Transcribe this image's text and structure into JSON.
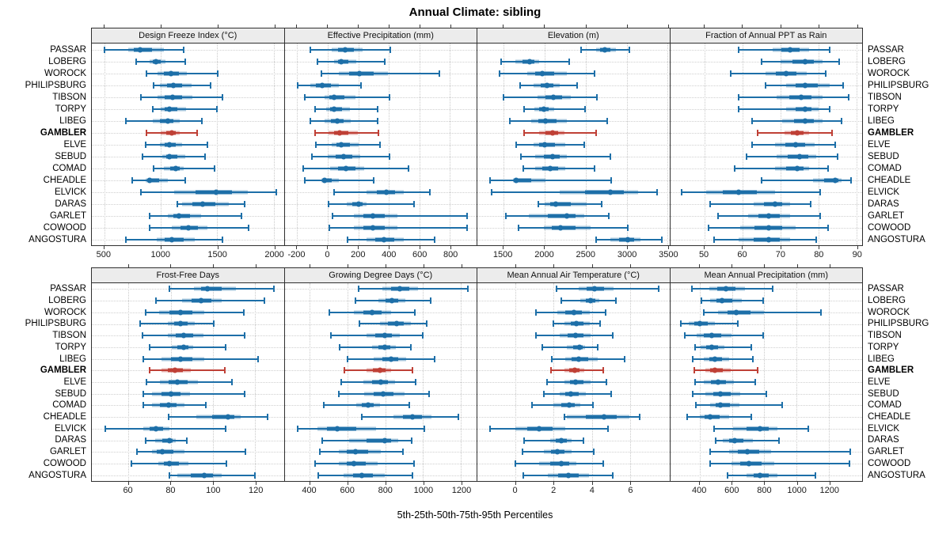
{
  "title": "Annual Climate: sibling",
  "caption": "5th-25th-50th-75th-95th Percentiles",
  "sites": [
    "PASSAR",
    "LOBERG",
    "WOROCK",
    "PHILIPSBURG",
    "TIBSON",
    "TORPY",
    "LIBEG",
    "GAMBLER",
    "ELVE",
    "SEBUD",
    "COMAD",
    "CHEADLE",
    "ELVICK",
    "DARAS",
    "GARLET",
    "COWOOD",
    "ANGOSTURA"
  ],
  "highlight_site": "GAMBLER",
  "colors": {
    "series": "#1d6fa8",
    "highlight": "#bf4036",
    "grid": "#c9c9c9",
    "strip_bg": "#ececec",
    "border": "#2f2f2f",
    "text": "#000000"
  },
  "chart_data": {
    "type": "trellis percentile dot plot (5-25-50-75-95)",
    "percentiles": [
      5,
      25,
      50,
      75,
      95
    ],
    "layout": "2 rows x 4 columns, 17 sites per panel, GAMBLER highlighted",
    "panels": [
      {
        "title": "Design Freeze Index (°C)",
        "xlim": [
          390,
          2090
        ],
        "ticks": [
          500,
          1000,
          1500,
          2000
        ],
        "values": [
          [
            500,
            710,
            820,
            1030,
            1200
          ],
          [
            780,
            900,
            960,
            1040,
            1215
          ],
          [
            875,
            970,
            1090,
            1230,
            1505
          ],
          [
            940,
            995,
            1110,
            1275,
            1440
          ],
          [
            825,
            970,
            1105,
            1280,
            1545
          ],
          [
            930,
            1000,
            1075,
            1225,
            1500
          ],
          [
            690,
            930,
            1060,
            1170,
            1365
          ],
          [
            875,
            1000,
            1095,
            1170,
            1320
          ],
          [
            865,
            990,
            1080,
            1190,
            1415
          ],
          [
            840,
            1015,
            1080,
            1215,
            1390
          ],
          [
            935,
            1030,
            1135,
            1205,
            1475
          ],
          [
            745,
            865,
            905,
            1065,
            1220
          ],
          [
            825,
            1120,
            1490,
            1770,
            2020
          ],
          [
            1150,
            1190,
            1370,
            1600,
            1740
          ],
          [
            900,
            1065,
            1160,
            1355,
            1715
          ],
          [
            905,
            1100,
            1245,
            1415,
            1780
          ],
          [
            690,
            965,
            1100,
            1300,
            1545
          ]
        ]
      },
      {
        "title": "Effective Precipitation (mm)",
        "xlim": [
          -282,
          974
        ],
        "ticks": [
          -200,
          0,
          200,
          400,
          600,
          800
        ],
        "values": [
          [
            -115,
            25,
            115,
            230,
            410
          ],
          [
            -65,
            40,
            90,
            185,
            375
          ],
          [
            -40,
            75,
            210,
            395,
            730
          ],
          [
            -195,
            -115,
            -35,
            75,
            220
          ],
          [
            -150,
            -20,
            40,
            180,
            405
          ],
          [
            -85,
            -10,
            40,
            145,
            325
          ],
          [
            -115,
            -20,
            60,
            150,
            325
          ],
          [
            -85,
            5,
            80,
            195,
            330
          ],
          [
            -75,
            25,
            90,
            200,
            340
          ],
          [
            -105,
            0,
            105,
            215,
            405
          ],
          [
            -160,
            15,
            120,
            240,
            530
          ],
          [
            -150,
            -40,
            -20,
            75,
            300
          ],
          [
            40,
            255,
            385,
            500,
            670
          ],
          [
            5,
            125,
            200,
            255,
            565
          ],
          [
            30,
            170,
            295,
            455,
            910
          ],
          [
            10,
            170,
            295,
            455,
            910
          ],
          [
            130,
            255,
            370,
            500,
            700
          ]
        ]
      },
      {
        "title": "Elevation (m)",
        "xlim": [
          1183,
          3520
        ],
        "ticks": [
          1500,
          2000,
          2500,
          3000,
          3500
        ],
        "values": [
          [
            2445,
            2625,
            2735,
            2870,
            3035
          ],
          [
            1470,
            1645,
            1820,
            1935,
            2300
          ],
          [
            1450,
            1790,
            1975,
            2270,
            2605
          ],
          [
            1700,
            1870,
            2030,
            2190,
            2400
          ],
          [
            1500,
            1915,
            2110,
            2320,
            2640
          ],
          [
            1750,
            1875,
            1990,
            2115,
            2490
          ],
          [
            1575,
            1835,
            2015,
            2270,
            2765
          ],
          [
            1750,
            1935,
            2095,
            2240,
            2625
          ],
          [
            1660,
            1870,
            2005,
            2255,
            2480
          ],
          [
            1710,
            1885,
            2095,
            2270,
            2800
          ],
          [
            1740,
            1885,
            2070,
            2255,
            2605
          ],
          [
            1340,
            1615,
            1655,
            2015,
            2815
          ],
          [
            1360,
            2185,
            2800,
            3135,
            3370
          ],
          [
            1925,
            2000,
            2135,
            2510,
            2695
          ],
          [
            1530,
            1805,
            2275,
            2480,
            2785
          ],
          [
            1685,
            1990,
            2195,
            2565,
            3015
          ],
          [
            2630,
            2800,
            3015,
            3165,
            3425
          ]
        ]
      },
      {
        "title": "Fraction of Annual PPT as Rain",
        "xlim": [
          41,
          91.5
        ],
        "ticks": [
          50,
          60,
          70,
          80,
          90
        ],
        "values": [
          [
            59,
            68,
            72.5,
            77.5,
            83
          ],
          [
            65,
            70,
            76.5,
            81,
            85.5
          ],
          [
            57,
            66,
            71.5,
            77,
            82
          ],
          [
            66,
            71.5,
            76.5,
            83,
            86.5
          ],
          [
            59,
            69,
            75.5,
            81,
            88
          ],
          [
            59,
            71.5,
            76.5,
            80,
            83
          ],
          [
            62.5,
            70.5,
            76.5,
            81,
            86
          ],
          [
            64,
            71,
            74.5,
            77.5,
            83.5
          ],
          [
            62.5,
            68.5,
            74,
            79,
            84.5
          ],
          [
            61,
            69,
            75,
            79.5,
            85
          ],
          [
            58,
            68.5,
            74.5,
            77.5,
            82.5
          ],
          [
            65,
            78.5,
            84.5,
            86,
            88.5
          ],
          [
            44,
            50.5,
            59,
            68.5,
            80.5
          ],
          [
            51.5,
            63,
            68.5,
            72.5,
            78
          ],
          [
            53.5,
            61.5,
            67,
            72.5,
            80.5
          ],
          [
            51,
            59.5,
            67,
            74,
            82.5
          ],
          [
            52.5,
            59,
            67,
            72.5,
            79.5
          ]
        ]
      },
      {
        "title": "Frost-Free Days",
        "xlim": [
          42.7,
          133.5
        ],
        "ticks": [
          60,
          80,
          100,
          120
        ],
        "values": [
          [
            79.5,
            91,
            97.5,
            111,
            129
          ],
          [
            73,
            85.5,
            94.5,
            104,
            124.5
          ],
          [
            68,
            74.5,
            84.5,
            96,
            114.5
          ],
          [
            65.5,
            78.5,
            84.5,
            91.5,
            100.5
          ],
          [
            66.5,
            78.5,
            86,
            95.5,
            115
          ],
          [
            70,
            80.5,
            86,
            90.5,
            106
          ],
          [
            67,
            75.5,
            84.5,
            96,
            121.5
          ],
          [
            70,
            75.5,
            82,
            89.5,
            105.5
          ],
          [
            68.5,
            75,
            83,
            93,
            109
          ],
          [
            67,
            71,
            80,
            89,
            115
          ],
          [
            67,
            71,
            79,
            86.5,
            96.5
          ],
          [
            79,
            92,
            107,
            113,
            126
          ],
          [
            49,
            67,
            73,
            79.5,
            106
          ],
          [
            68,
            72.5,
            79.5,
            82.5,
            87.5
          ],
          [
            64,
            71,
            76,
            86.5,
            115.5
          ],
          [
            61.5,
            74,
            79.5,
            88.5,
            106.5
          ],
          [
            79.5,
            83,
            96,
            104,
            120
          ]
        ]
      },
      {
        "title": "Growing Degree Days (°C)",
        "xlim": [
          267,
          1283
        ],
        "ticks": [
          400,
          600,
          800,
          1000,
          1200
        ],
        "values": [
          [
            660,
            785,
            875,
            975,
            1235
          ],
          [
            640,
            765,
            835,
            905,
            1040
          ],
          [
            505,
            635,
            730,
            830,
            955
          ],
          [
            665,
            770,
            860,
            935,
            1020
          ],
          [
            510,
            700,
            795,
            875,
            1000
          ],
          [
            560,
            730,
            795,
            855,
            935
          ],
          [
            600,
            740,
            830,
            910,
            1060
          ],
          [
            585,
            700,
            770,
            830,
            945
          ],
          [
            565,
            685,
            775,
            850,
            960
          ],
          [
            555,
            690,
            790,
            900,
            1030
          ],
          [
            475,
            645,
            710,
            770,
            925
          ],
          [
            675,
            845,
            945,
            1045,
            1185
          ],
          [
            335,
            440,
            545,
            750,
            1005
          ],
          [
            465,
            610,
            795,
            870,
            940
          ],
          [
            455,
            555,
            640,
            775,
            895
          ],
          [
            430,
            555,
            635,
            760,
            950
          ],
          [
            445,
            580,
            675,
            795,
            945
          ]
        ]
      },
      {
        "title": "Mean Annual Air Temperature (°C)",
        "xlim": [
          -2,
          8.06
        ],
        "ticks": [
          0,
          2,
          4,
          6
        ],
        "values": [
          [
            2.15,
            3.3,
            4.15,
            5.15,
            7.5
          ],
          [
            2.4,
            3.4,
            3.95,
            4.4,
            5.25
          ],
          [
            1.05,
            2.2,
            3.05,
            3.9,
            4.7
          ],
          [
            2.0,
            2.55,
            3.2,
            3.9,
            4.45
          ],
          [
            1.05,
            2.3,
            3.15,
            3.95,
            5.1
          ],
          [
            1.4,
            2.7,
            3.35,
            3.65,
            4.3
          ],
          [
            1.9,
            2.6,
            3.3,
            4.3,
            5.7
          ],
          [
            1.85,
            2.55,
            3.1,
            3.6,
            4.6
          ],
          [
            1.65,
            2.55,
            3.15,
            3.95,
            4.75
          ],
          [
            1.5,
            2.3,
            2.9,
            3.7,
            5.0
          ],
          [
            0.85,
            2.0,
            2.8,
            3.4,
            4.05
          ],
          [
            2.55,
            2.7,
            4.65,
            5.95,
            6.5
          ],
          [
            -1.35,
            0.0,
            1.25,
            2.6,
            4.85
          ],
          [
            0.45,
            1.8,
            2.4,
            2.95,
            3.55
          ],
          [
            0.35,
            1.5,
            2.2,
            2.95,
            4.1
          ],
          [
            0.0,
            1.25,
            2.4,
            3.2,
            4.6
          ],
          [
            0.4,
            1.7,
            2.75,
            3.85,
            5.1
          ]
        ]
      },
      {
        "title": "Mean Annual Precipitation (mm)",
        "xlim": [
          217,
          1405
        ],
        "ticks": [
          400,
          600,
          800,
          1000,
          1200
        ],
        "values": [
          [
            350,
            460,
            560,
            680,
            850
          ],
          [
            410,
            465,
            540,
            660,
            795
          ],
          [
            425,
            515,
            625,
            800,
            1150
          ],
          [
            285,
            330,
            400,
            495,
            635
          ],
          [
            310,
            380,
            475,
            595,
            795
          ],
          [
            370,
            405,
            475,
            555,
            720
          ],
          [
            355,
            425,
            495,
            580,
            730
          ],
          [
            365,
            435,
            495,
            590,
            760
          ],
          [
            370,
            425,
            515,
            610,
            745
          ],
          [
            355,
            435,
            530,
            650,
            810
          ],
          [
            375,
            465,
            530,
            645,
            910
          ],
          [
            320,
            400,
            465,
            580,
            720
          ],
          [
            490,
            605,
            775,
            880,
            1070
          ],
          [
            500,
            545,
            615,
            730,
            890
          ],
          [
            465,
            580,
            695,
            840,
            1330
          ],
          [
            465,
            595,
            705,
            860,
            1325
          ],
          [
            570,
            690,
            775,
            880,
            1115
          ]
        ]
      }
    ]
  }
}
